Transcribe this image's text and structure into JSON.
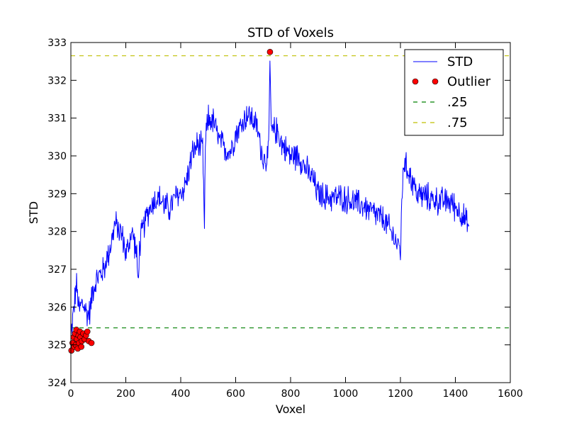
{
  "chart_data": {
    "type": "line",
    "title": "STD of Voxels",
    "xlabel": "Voxel",
    "ylabel": "STD",
    "xlim": [
      0,
      1600
    ],
    "ylim": [
      324,
      333
    ],
    "xticks": [
      0,
      200,
      400,
      600,
      800,
      1000,
      1200,
      1400,
      1600
    ],
    "yticks": [
      324,
      325,
      326,
      327,
      328,
      329,
      330,
      331,
      332,
      333
    ],
    "grid": false,
    "legend_position": "top-right",
    "series": [
      {
        "name": "STD",
        "kind": "line",
        "color": "#0000ff",
        "anchors": [
          [
            0,
            325.2
          ],
          [
            10,
            325.9
          ],
          [
            20,
            326.6
          ],
          [
            30,
            325.9
          ],
          [
            40,
            326.1
          ],
          [
            50,
            326.0
          ],
          [
            60,
            325.8
          ],
          [
            70,
            325.9
          ],
          [
            80,
            326.5
          ],
          [
            100,
            326.8
          ],
          [
            120,
            327.0
          ],
          [
            140,
            327.5
          ],
          [
            150,
            327.8
          ],
          [
            160,
            328.2
          ],
          [
            170,
            328.1
          ],
          [
            180,
            328.0
          ],
          [
            190,
            327.8
          ],
          [
            200,
            327.4
          ],
          [
            210,
            327.6
          ],
          [
            220,
            328.0
          ],
          [
            230,
            327.8
          ],
          [
            240,
            327.3
          ],
          [
            245,
            326.6
          ],
          [
            250,
            327.6
          ],
          [
            260,
            328.0
          ],
          [
            280,
            328.5
          ],
          [
            300,
            328.8
          ],
          [
            320,
            328.9
          ],
          [
            340,
            328.7
          ],
          [
            360,
            328.6
          ],
          [
            380,
            328.9
          ],
          [
            400,
            329.0
          ],
          [
            420,
            329.3
          ],
          [
            440,
            330.0
          ],
          [
            460,
            330.3
          ],
          [
            480,
            330.2
          ],
          [
            486,
            328.0
          ],
          [
            490,
            330.4
          ],
          [
            500,
            331.0
          ],
          [
            520,
            330.9
          ],
          [
            540,
            330.4
          ],
          [
            560,
            330.2
          ],
          [
            580,
            330.1
          ],
          [
            600,
            330.6
          ],
          [
            620,
            330.8
          ],
          [
            640,
            331.1
          ],
          [
            660,
            331.0
          ],
          [
            680,
            330.7
          ],
          [
            700,
            329.9
          ],
          [
            720,
            330.0
          ],
          [
            725,
            332.5
          ],
          [
            730,
            330.6
          ],
          [
            750,
            330.7
          ],
          [
            770,
            330.3
          ],
          [
            800,
            330.0
          ],
          [
            830,
            330.0
          ],
          [
            860,
            329.6
          ],
          [
            880,
            329.4
          ],
          [
            900,
            329.0
          ],
          [
            930,
            328.9
          ],
          [
            960,
            328.9
          ],
          [
            990,
            328.9
          ],
          [
            1020,
            328.8
          ],
          [
            1060,
            328.7
          ],
          [
            1100,
            328.5
          ],
          [
            1140,
            328.3
          ],
          [
            1180,
            327.8
          ],
          [
            1200,
            327.5
          ],
          [
            1210,
            329.8
          ],
          [
            1230,
            329.6
          ],
          [
            1260,
            329.0
          ],
          [
            1300,
            328.9
          ],
          [
            1340,
            328.8
          ],
          [
            1380,
            328.8
          ],
          [
            1420,
            328.5
          ],
          [
            1450,
            328.1
          ]
        ],
        "noise_amplitude": 0.45
      },
      {
        "name": "Outlier",
        "kind": "markers",
        "color": "#ff0000",
        "points": [
          [
            2,
            324.85
          ],
          [
            6,
            325.05
          ],
          [
            10,
            325.2
          ],
          [
            12,
            324.95
          ],
          [
            15,
            325.3
          ],
          [
            18,
            325.0
          ],
          [
            20,
            325.4
          ],
          [
            22,
            325.15
          ],
          [
            25,
            324.9
          ],
          [
            28,
            325.25
          ],
          [
            30,
            325.05
          ],
          [
            33,
            325.35
          ],
          [
            35,
            325.2
          ],
          [
            38,
            324.95
          ],
          [
            40,
            325.1
          ],
          [
            45,
            325.3
          ],
          [
            50,
            325.15
          ],
          [
            55,
            325.25
          ],
          [
            60,
            325.35
          ],
          [
            65,
            325.1
          ],
          [
            75,
            325.05
          ],
          [
            725,
            332.75
          ]
        ]
      },
      {
        "name": ".25",
        "kind": "hline",
        "color": "#008000",
        "y": 325.45
      },
      {
        "name": ".75",
        "kind": "hline",
        "color": "#bfbf00",
        "y": 332.65
      }
    ]
  }
}
